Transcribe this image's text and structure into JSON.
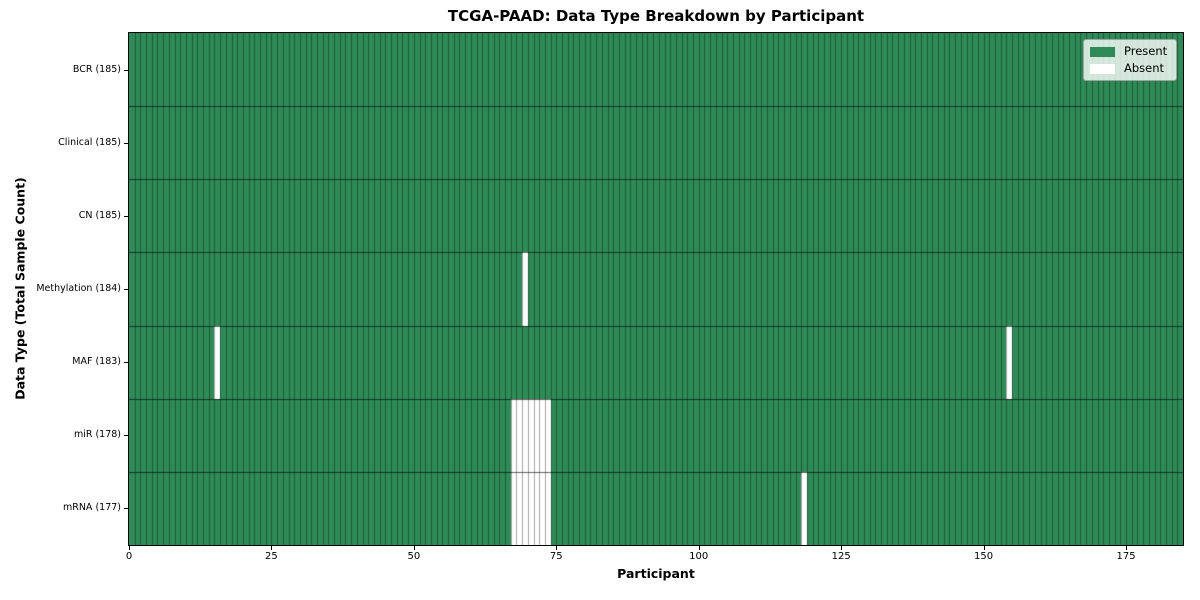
{
  "chart_data": {
    "type": "heatmap",
    "title": "TCGA-PAAD: Data Type Breakdown by Participant",
    "xlabel": "Participant",
    "ylabel": "Data Type (Total Sample Count)",
    "x_ticks": [
      0,
      25,
      50,
      75,
      100,
      125,
      150,
      175
    ],
    "xlim": [
      0,
      185
    ],
    "n_participants": 185,
    "grid": "cell-edges",
    "legend_position": "upper-right",
    "legend": [
      {
        "label": "Present",
        "color": "#2e8b57"
      },
      {
        "label": "Absent",
        "color": "#ffffff"
      }
    ],
    "rows": [
      {
        "name": "BCR",
        "label": "BCR (185)",
        "total": 185,
        "absent": []
      },
      {
        "name": "Clinical",
        "label": "Clinical (185)",
        "total": 185,
        "absent": []
      },
      {
        "name": "CN",
        "label": "CN (185)",
        "total": 185,
        "absent": []
      },
      {
        "name": "Methylation",
        "label": "Methylation (184)",
        "total": 184,
        "absent": [
          69
        ]
      },
      {
        "name": "MAF",
        "label": "MAF (183)",
        "total": 183,
        "absent": [
          15,
          154
        ]
      },
      {
        "name": "miR",
        "label": "miR (178)",
        "total": 178,
        "absent": [
          67,
          68,
          69,
          70,
          71,
          72,
          73
        ]
      },
      {
        "name": "mRNA",
        "label": "mRNA (177)",
        "total": 177,
        "absent": [
          67,
          68,
          69,
          70,
          71,
          72,
          73,
          118
        ]
      }
    ],
    "colors": {
      "present": "#2e8b57",
      "absent": "#ffffff",
      "cell_edge": "rgba(0,0,0,0.35)",
      "row_separator": "rgba(0,0,0,0.6)",
      "spine": "#000000",
      "tick": "#000000",
      "text": "#000000",
      "legend_bg": "rgba(255,255,255,0.8)"
    }
  }
}
